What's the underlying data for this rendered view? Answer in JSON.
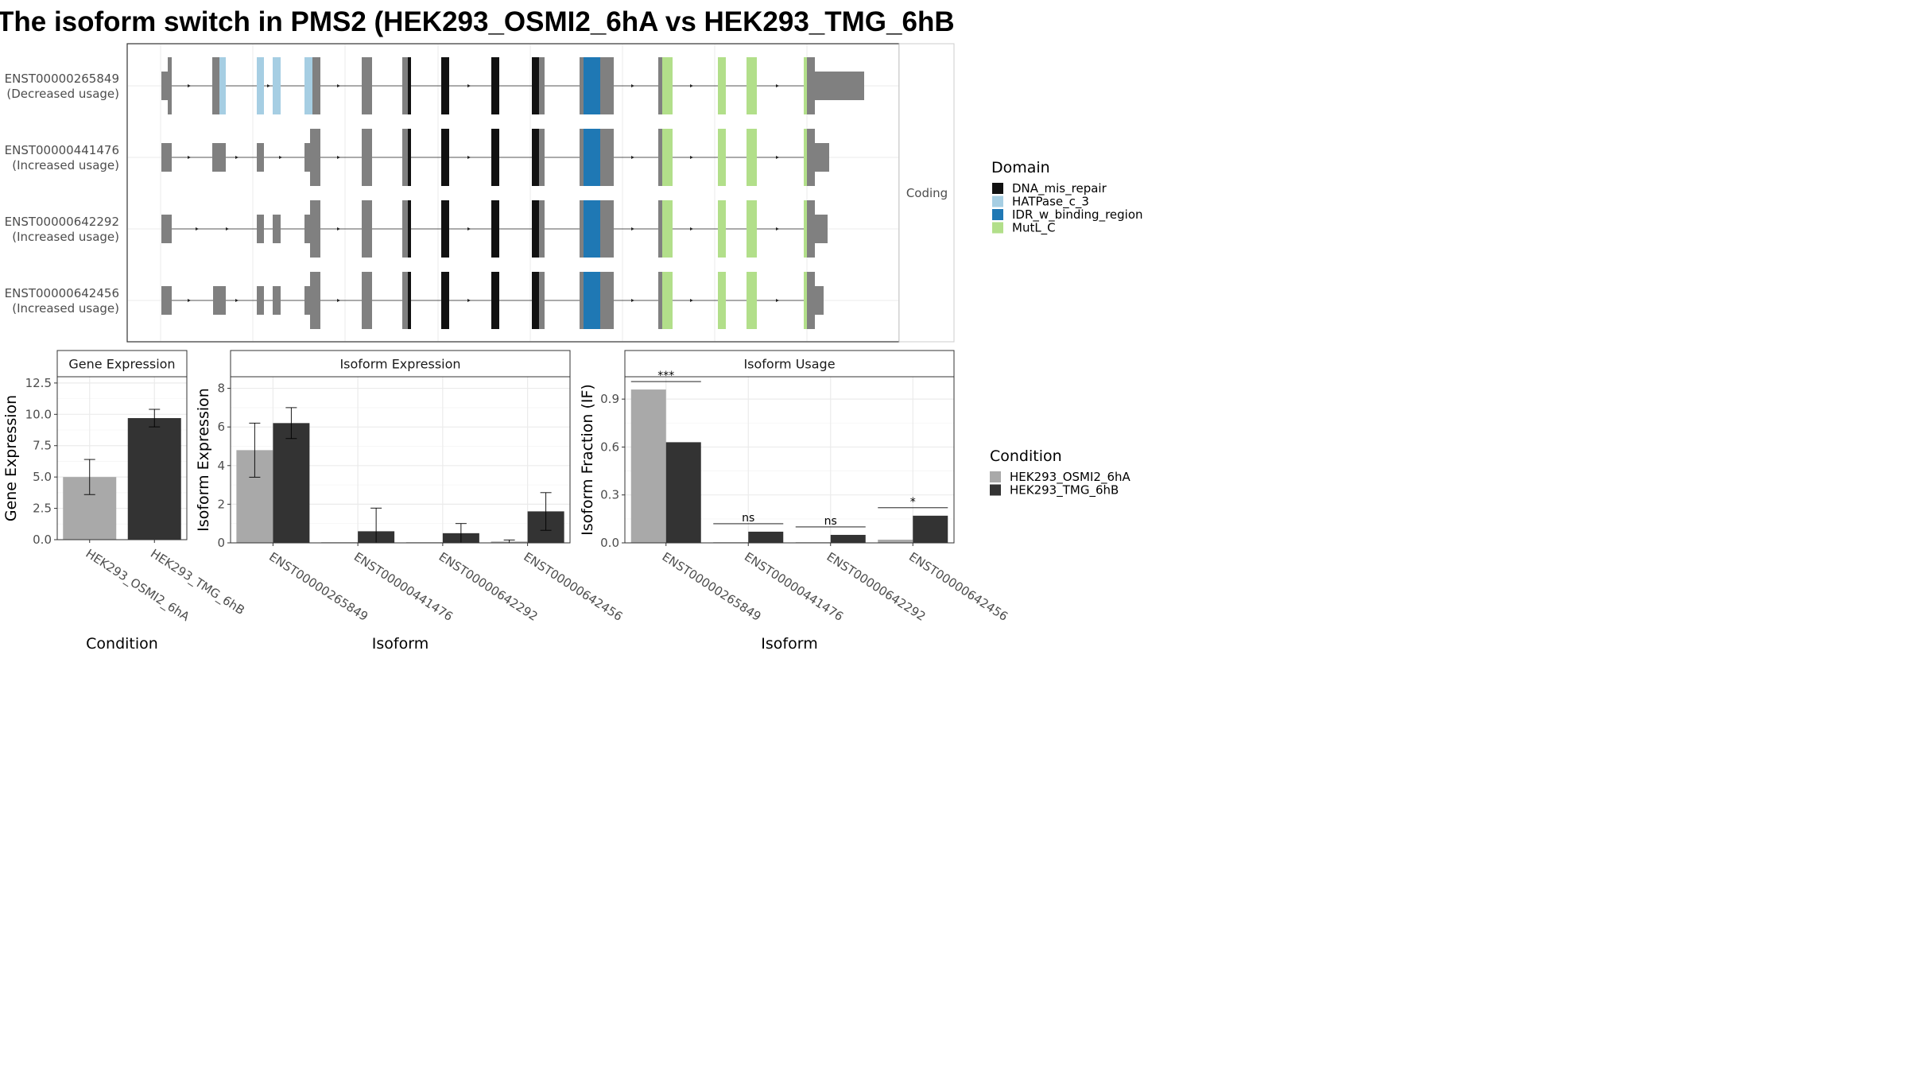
{
  "title": "The isoform switch in PMS2 (HEK293_OSMI2_6hA vs HEK293_TMG_6hB",
  "colors": {
    "DNA_mis_repair": "#111111",
    "HATPase_c_3": "#a6cee3",
    "IDR_w_binding_region": "#1f78b4",
    "MutL_C": "#b2df8a",
    "exon": "#808080",
    "HEK293_OSMI2_6hA": "#a9a9a9",
    "HEK293_TMG_6hB": "#333333"
  },
  "chart_data": [
    {
      "type": "transcript-structure",
      "facet_label": "Coding",
      "transcripts": [
        {
          "id": "ENST00000265849",
          "usage": "(Decreased usage)"
        },
        {
          "id": "ENST00000441476",
          "usage": "(Increased usage)"
        },
        {
          "id": "ENST00000642292",
          "usage": "(Increased usage)"
        },
        {
          "id": "ENST00000642456",
          "usage": "(Increased usage)"
        }
      ],
      "legend_title": "Domain",
      "domains": [
        "DNA_mis_repair",
        "HATPase_c_3",
        "IDR_w_binding_region",
        "MutL_C"
      ]
    },
    {
      "type": "bar",
      "title": "Gene Expression",
      "xlabel": "Condition",
      "ylabel": "Gene Expression",
      "ylim": [
        0,
        13
      ],
      "yticks": [
        "0.0",
        "2.5",
        "5.0",
        "7.5",
        "10.0",
        "12.5"
      ],
      "categories": [
        "HEK293_OSMI2_6hA",
        "HEK293_TMG_6hB"
      ],
      "values": [
        5.0,
        9.7
      ],
      "errors": [
        [
          3.6,
          6.4
        ],
        [
          9.0,
          10.4
        ]
      ]
    },
    {
      "type": "bar",
      "title": "Isoform Expression",
      "xlabel": "Isoform",
      "ylabel": "Isoform Expression",
      "ylim": [
        0,
        8.6
      ],
      "yticks": [
        "0",
        "2",
        "4",
        "6",
        "8"
      ],
      "categories": [
        "ENST00000265849",
        "ENST00000441476",
        "ENST00000642292",
        "ENST00000642456"
      ],
      "series": [
        {
          "name": "HEK293_OSMI2_6hA",
          "values": [
            4.8,
            0.0,
            0.0,
            0.07
          ],
          "errors": [
            [
              3.4,
              6.2
            ],
            [
              0,
              0
            ],
            [
              0,
              0
            ],
            [
              0.0,
              0.15
            ]
          ]
        },
        {
          "name": "HEK293_TMG_6hB",
          "values": [
            6.2,
            0.6,
            0.5,
            1.63
          ],
          "errors": [
            [
              5.4,
              7.0
            ],
            [
              0.0,
              1.8
            ],
            [
              0.0,
              1.0
            ],
            [
              0.65,
              2.6
            ]
          ]
        }
      ]
    },
    {
      "type": "bar",
      "title": "Isoform Usage",
      "xlabel": "Isoform",
      "ylabel": "Isoform Fraction (IF)",
      "ylim": [
        0,
        1.04
      ],
      "yticks": [
        "0.0",
        "0.3",
        "0.6",
        "0.9"
      ],
      "categories": [
        "ENST00000265849",
        "ENST00000441476",
        "ENST00000642292",
        "ENST00000642456"
      ],
      "series": [
        {
          "name": "HEK293_OSMI2_6hA",
          "values": [
            0.96,
            0.0,
            0.0,
            0.02
          ]
        },
        {
          "name": "HEK293_TMG_6hB",
          "values": [
            0.63,
            0.07,
            0.05,
            0.17
          ]
        }
      ],
      "significance": [
        "***",
        "ns",
        "ns",
        "*"
      ],
      "legend_title": "Condition",
      "legend": [
        "HEK293_OSMI2_6hA",
        "HEK293_TMG_6hB"
      ]
    }
  ]
}
